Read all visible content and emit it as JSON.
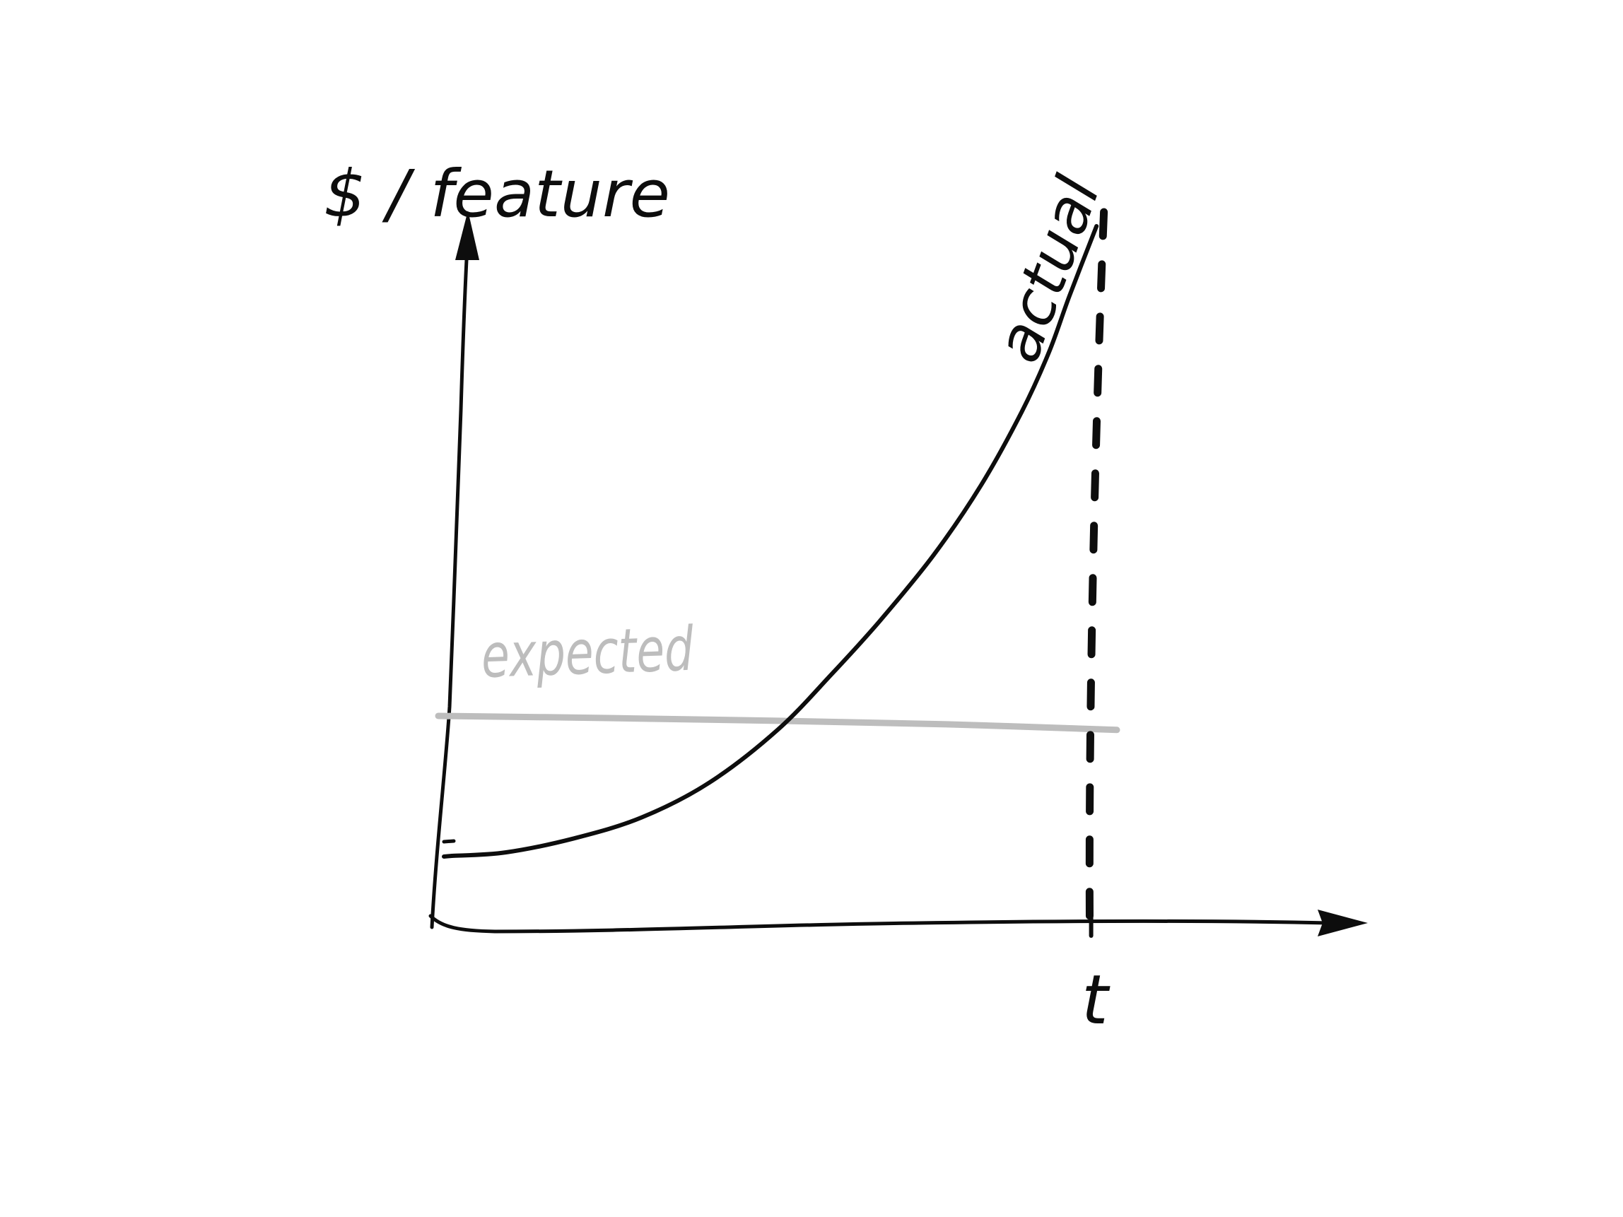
{
  "chart_data": {
    "type": "line",
    "style": "hand-drawn sketch",
    "ylabel": "$ / feature",
    "xlabel": "t",
    "x_ticks": [],
    "y_ticks": [],
    "xlim": [
      0,
      10
    ],
    "ylim": [
      0,
      10
    ],
    "grid": false,
    "legend": "none",
    "series": [
      {
        "name": "actual",
        "label_placement": "rotated along curve near top-right",
        "color": "#0d0d0d",
        "x": [
          0.2,
          1.0,
          2.0,
          3.0,
          4.0,
          5.0,
          5.8,
          6.5,
          7.3,
          8.0,
          8.6,
          9.0,
          9.3,
          9.7
        ],
        "y": [
          1.0,
          1.05,
          1.25,
          1.55,
          2.05,
          2.8,
          3.6,
          4.35,
          5.3,
          6.3,
          7.35,
          8.2,
          9.0,
          10.0
        ]
      },
      {
        "name": "expected",
        "label_placement": "above line at left",
        "color": "#bdbdbd",
        "x": [
          0.0,
          2.5,
          5.0,
          7.5,
          10.0
        ],
        "y": [
          3.0,
          2.97,
          2.93,
          2.88,
          2.8
        ]
      }
    ],
    "annotations": [
      {
        "kind": "vertical-dashed-line",
        "x": 9.6,
        "color": "#0d0d0d",
        "label": "t"
      }
    ]
  }
}
